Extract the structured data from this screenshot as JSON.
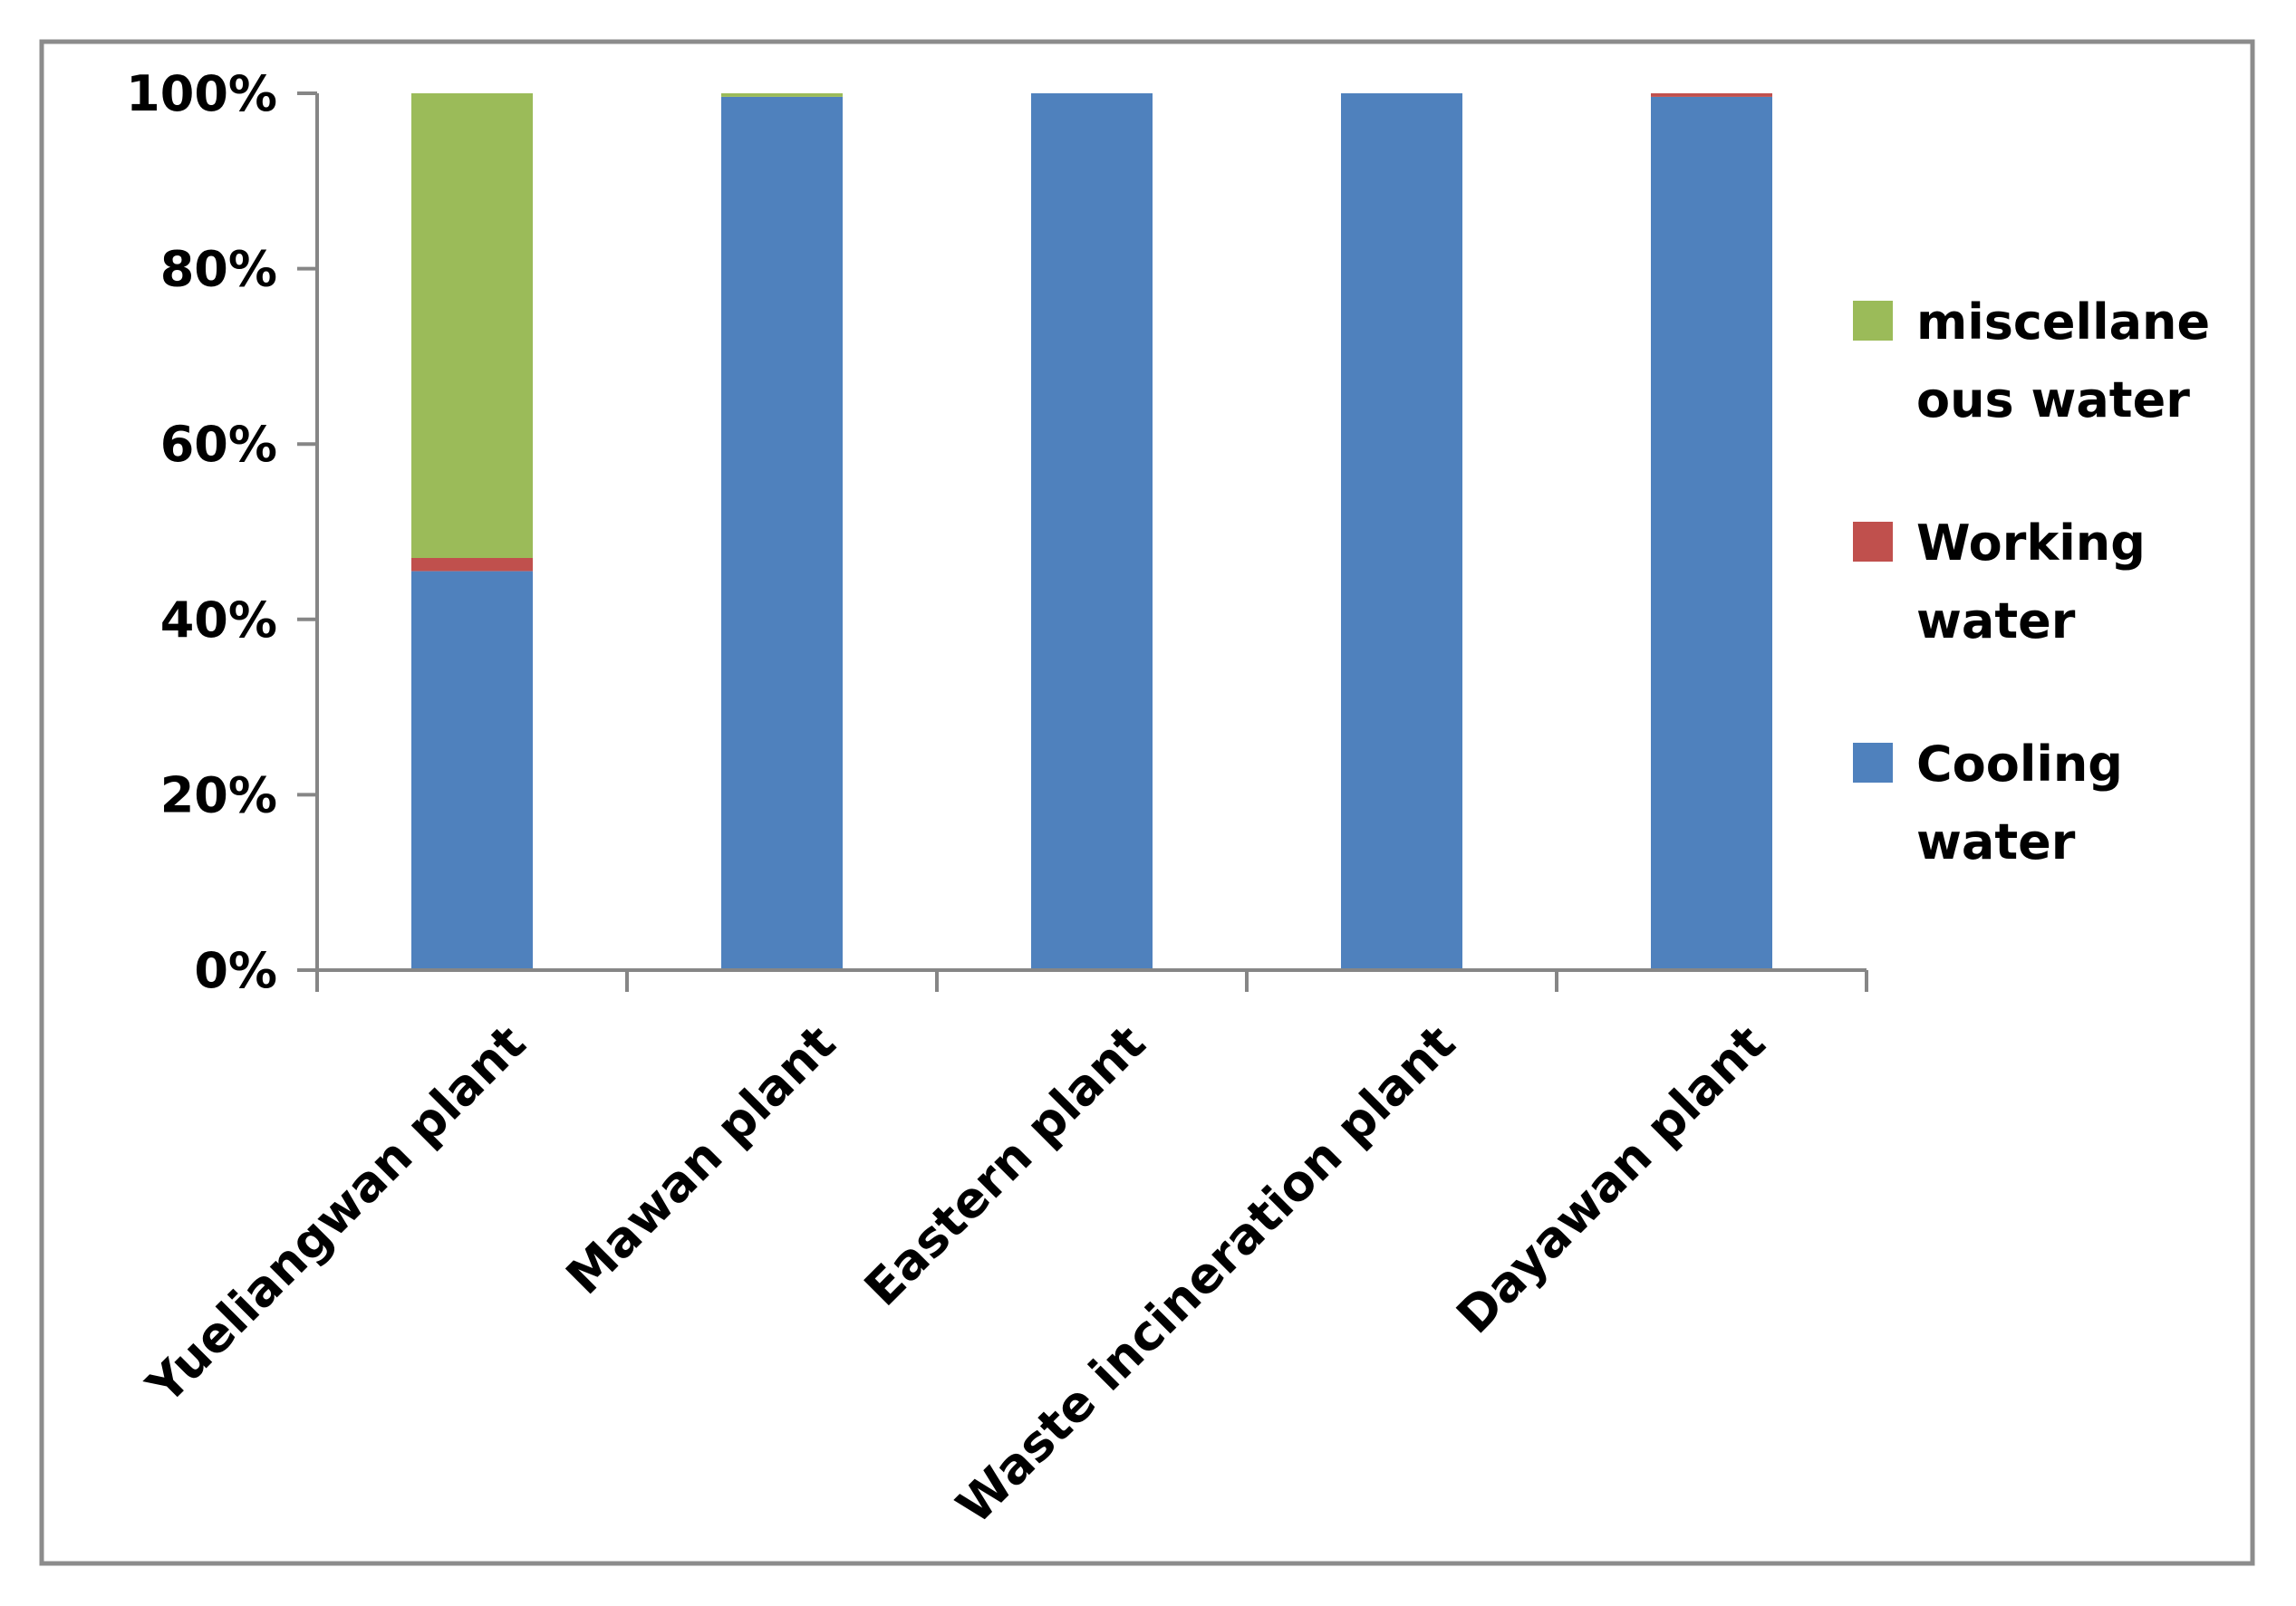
{
  "chart_data": {
    "type": "bar",
    "stacked": true,
    "percent_stacked": true,
    "title": "",
    "xlabel": "",
    "ylabel": "",
    "ylim": [
      0,
      100
    ],
    "y_ticks": [
      "0%",
      "20%",
      "40%",
      "60%",
      "80%",
      "100%"
    ],
    "y_tick_values": [
      0,
      20,
      40,
      60,
      80,
      100
    ],
    "categories": [
      "Yueliangwan plant",
      "Mawan plant",
      "Eastern plant",
      "Waste incineration plant",
      "Dayawan plant"
    ],
    "series": [
      {
        "name": "Cooling water",
        "color": "#4f81bd",
        "values": [
          45.5,
          99.6,
          100,
          100,
          99.6
        ]
      },
      {
        "name": "Working water",
        "color": "#c0504d",
        "values": [
          1.5,
          0.0,
          0.0,
          0.0,
          0.4
        ]
      },
      {
        "name": "miscellaneous water",
        "color": "#9bbb59",
        "values": [
          53.0,
          0.4,
          0.0,
          0.0,
          0.0
        ]
      }
    ],
    "legend": {
      "placement": "right",
      "items": [
        {
          "series": "miscellaneous water",
          "lines": [
            "miscellane",
            "ous water"
          ],
          "color": "#9bbb59"
        },
        {
          "series": "Working water",
          "lines": [
            "Working",
            "water"
          ],
          "color": "#c0504d"
        },
        {
          "series": "Cooling water",
          "lines": [
            "Cooling",
            "water"
          ],
          "color": "#4f81bd"
        }
      ]
    },
    "grid": false,
    "border_color": "#8c8c8c",
    "axis_color": "#868686"
  }
}
